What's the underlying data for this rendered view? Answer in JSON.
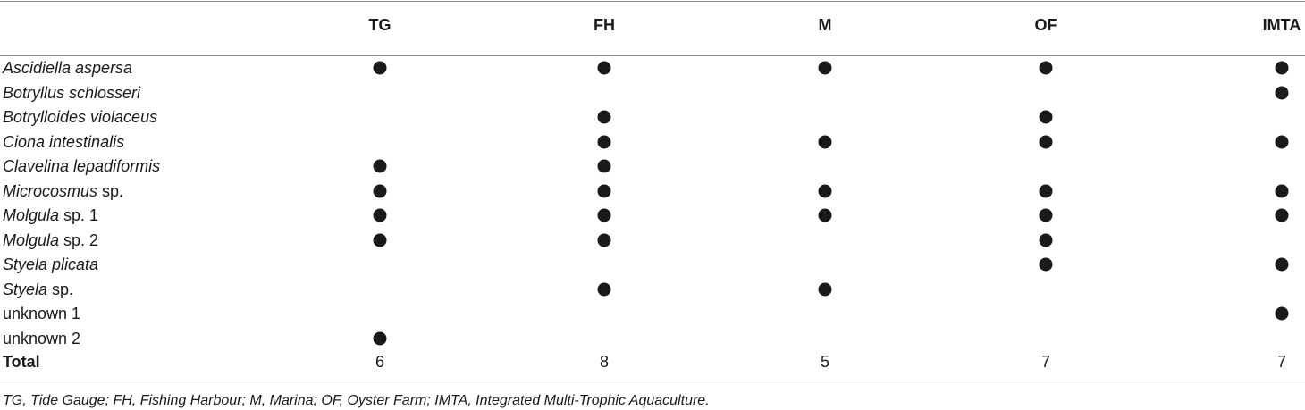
{
  "table": {
    "columns": [
      "TG",
      "FH",
      "M",
      "OF",
      "IMTA"
    ],
    "rows": [
      {
        "species": [
          {
            "text": "Ascidiella aspersa",
            "italic": true
          }
        ],
        "presence": [
          true,
          true,
          true,
          true,
          true
        ]
      },
      {
        "species": [
          {
            "text": "Botryllus schlosseri",
            "italic": true
          }
        ],
        "presence": [
          false,
          false,
          false,
          false,
          true
        ]
      },
      {
        "species": [
          {
            "text": "Botrylloides violaceus",
            "italic": true
          }
        ],
        "presence": [
          false,
          true,
          false,
          true,
          false
        ]
      },
      {
        "species": [
          {
            "text": "Ciona intestinalis",
            "italic": true
          }
        ],
        "presence": [
          false,
          true,
          true,
          true,
          true
        ]
      },
      {
        "species": [
          {
            "text": "Clavelina lepadiformis",
            "italic": true
          }
        ],
        "presence": [
          true,
          true,
          false,
          false,
          false
        ]
      },
      {
        "species": [
          {
            "text": "Microcosmus",
            "italic": true
          },
          {
            "text": " sp.",
            "italic": false
          }
        ],
        "presence": [
          true,
          true,
          true,
          true,
          true
        ]
      },
      {
        "species": [
          {
            "text": "Molgula",
            "italic": true
          },
          {
            "text": " sp. 1",
            "italic": false
          }
        ],
        "presence": [
          true,
          true,
          true,
          true,
          true
        ]
      },
      {
        "species": [
          {
            "text": "Molgula",
            "italic": true
          },
          {
            "text": " sp. 2",
            "italic": false
          }
        ],
        "presence": [
          true,
          true,
          false,
          true,
          false
        ]
      },
      {
        "species": [
          {
            "text": "Styela plicata",
            "italic": true
          }
        ],
        "presence": [
          false,
          false,
          false,
          true,
          true
        ]
      },
      {
        "species": [
          {
            "text": "Styela",
            "italic": true
          },
          {
            "text": " sp.",
            "italic": false
          }
        ],
        "presence": [
          false,
          true,
          true,
          false,
          false
        ]
      },
      {
        "species": [
          {
            "text": "unknown 1",
            "italic": false
          }
        ],
        "presence": [
          false,
          false,
          false,
          false,
          true
        ]
      },
      {
        "species": [
          {
            "text": "unknown 2",
            "italic": false
          }
        ],
        "presence": [
          true,
          false,
          false,
          false,
          false
        ]
      }
    ],
    "total_label": "Total",
    "totals": [
      "6",
      "8",
      "5",
      "7",
      "7"
    ]
  },
  "footnote": "TG, Tide Gauge; FH, Fishing Harbour; M, Marina; OF, Oyster Farm; IMTA, Integrated Multi-Trophic Aquaculture."
}
